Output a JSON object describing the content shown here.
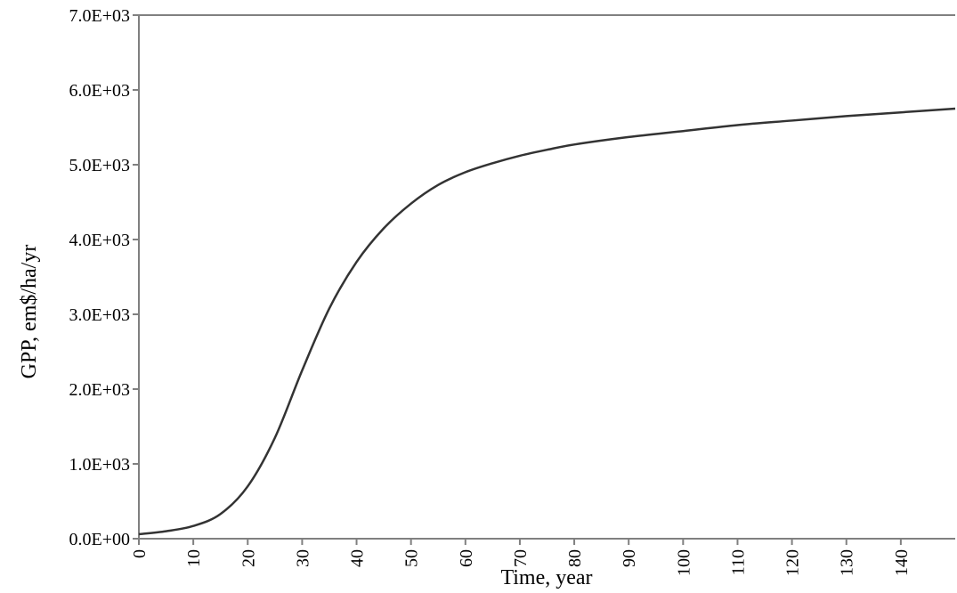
{
  "chart_data": {
    "type": "line",
    "title": "",
    "xlabel": "Time, year",
    "ylabel": "GPP, em$/ha/yr",
    "xlim": [
      0,
      150
    ],
    "ylim": [
      0,
      7000
    ],
    "x_ticks": [
      "0",
      "10",
      "20",
      "30",
      "40",
      "50",
      "60",
      "70",
      "80",
      "90",
      "100",
      "110",
      "120",
      "130",
      "140"
    ],
    "y_ticks": [
      "0.0E+00",
      "1.0E+03",
      "2.0E+03",
      "3.0E+03",
      "4.0E+03",
      "5.0E+03",
      "6.0E+03",
      "7.0E+03"
    ],
    "grid": false,
    "legend": "none",
    "colors": {
      "line": "#333333",
      "axis": "#808080"
    },
    "series": [
      {
        "x": [
          0,
          5,
          10,
          15,
          20,
          25,
          30,
          35,
          40,
          45,
          50,
          55,
          60,
          65,
          70,
          75,
          80,
          90,
          100,
          110,
          120,
          130,
          140,
          150
        ],
        "values": [
          60,
          100,
          170,
          330,
          700,
          1350,
          2250,
          3080,
          3700,
          4150,
          4480,
          4730,
          4900,
          5020,
          5120,
          5200,
          5270,
          5370,
          5450,
          5530,
          5590,
          5650,
          5700,
          5750
        ]
      }
    ]
  }
}
